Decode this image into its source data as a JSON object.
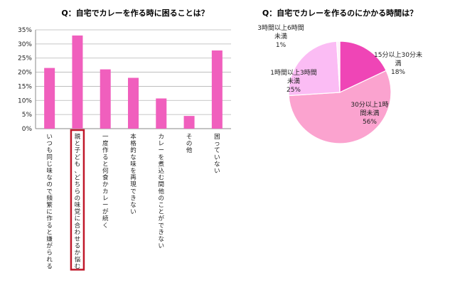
{
  "chart_data": [
    {
      "type": "bar",
      "title": "Q：自宅でカレーを作る時に困ることは？",
      "categories": [
        "いつも同じ味なので頻繁に作ると嫌がられる",
        "親と子ども、どちらの味覚に合わせるか悩む",
        "一度作ると何食かカレーが続く",
        "本格的な味を再現できない",
        "カレーを煮込む間他のことができない",
        "その他",
        "困っていない"
      ],
      "values": [
        21.5,
        33,
        21,
        18,
        10.7,
        4.5,
        27.7
      ],
      "ylim": [
        0,
        35
      ],
      "yticks": [
        "0%",
        "5%",
        "10%",
        "15%",
        "20%",
        "25%",
        "30%",
        "35%"
      ],
      "highlight_index": 1,
      "grid": true,
      "bar_color": "#f05fbd",
      "highlight_color": "#c0182a"
    },
    {
      "type": "pie",
      "title": "Q：自宅でカレーを作るのにかかる時間は？",
      "slices": [
        {
          "label": "15分以上30分未満",
          "value": 18,
          "value_label": "18%",
          "color": "#ef45b6"
        },
        {
          "label": "30分以上1時間未満",
          "value": 56,
          "value_label": "56%",
          "color": "#fba3cf"
        },
        {
          "label": "1時間以上3時間未満",
          "value": 25,
          "value_label": "25%",
          "color": "#fbbcf4"
        },
        {
          "label": "3時間以上6時間未満",
          "value": 1,
          "value_label": "1%",
          "color": "#fdf2fa"
        }
      ]
    }
  ]
}
